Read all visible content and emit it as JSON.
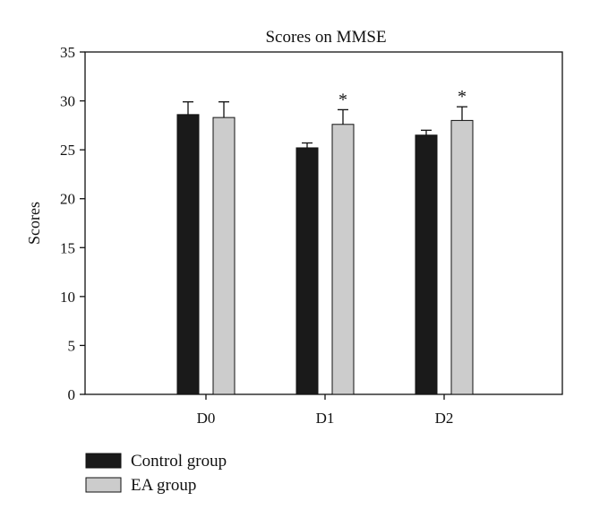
{
  "chart_data": {
    "type": "bar",
    "title": "Scores on MMSE",
    "xlabel": "",
    "ylabel": "Scores",
    "ylim": [
      0,
      35
    ],
    "yticks": [
      0,
      5,
      10,
      15,
      20,
      25,
      30,
      35
    ],
    "categories": [
      "D0",
      "D1",
      "D2"
    ],
    "series": [
      {
        "name": "Control group",
        "color": "#1a1a1a",
        "values": [
          28.6,
          25.2,
          26.5
        ],
        "error": [
          1.3,
          0.5,
          0.5
        ],
        "significance": [
          "",
          "",
          ""
        ]
      },
      {
        "name": "EA group",
        "color": "#cccccc",
        "values": [
          28.3,
          27.6,
          28.0
        ],
        "error": [
          1.6,
          1.5,
          1.4
        ],
        "significance": [
          "",
          "*",
          "*"
        ]
      }
    ],
    "legend_position": "bottom-left",
    "grid": false
  }
}
